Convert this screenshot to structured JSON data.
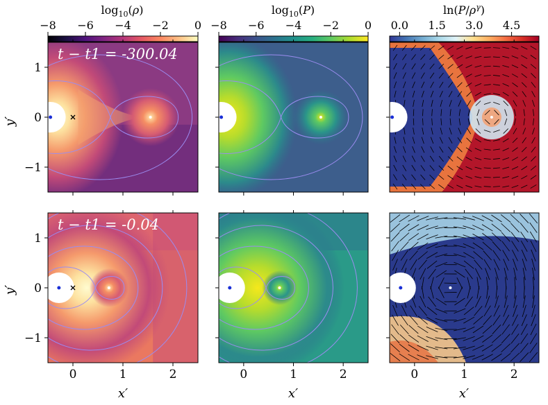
{
  "chart_data": {
    "type": "heatmap",
    "colorbars": [
      {
        "name": "density",
        "title": "log10(ρ)",
        "ticks": [
          "−8",
          "−6",
          "−4",
          "−2",
          "0"
        ],
        "tick_values": [
          -8,
          -6,
          -4,
          -2,
          0
        ],
        "range": [
          -8,
          0
        ],
        "colormap": "magma"
      },
      {
        "name": "pressure",
        "title": "log10(P)",
        "ticks": [
          "−8",
          "−6",
          "−4",
          "−2",
          "0"
        ],
        "tick_values": [
          -8,
          -6,
          -4,
          -2,
          0
        ],
        "range": [
          -8,
          0
        ],
        "colormap": "viridis"
      },
      {
        "name": "entropy",
        "title": "ln(P/ρ^γ)",
        "ticks": [
          "0.0",
          "1.5",
          "3.0",
          "4.5"
        ],
        "tick_values": [
          0.0,
          1.5,
          3.0,
          4.5
        ],
        "range": [
          -0.4,
          5.6
        ],
        "colormap": "RdYlBu_r"
      }
    ],
    "xlabel": "x′",
    "ylabel": "y′",
    "xlim": [
      -0.5,
      2.5
    ],
    "ylim": [
      -1.5,
      1.5
    ],
    "xticks": [
      0,
      1,
      2
    ],
    "yticks": [
      -1,
      0,
      1
    ],
    "xtick_labels": [
      "0",
      "1",
      "2"
    ],
    "ytick_labels": [
      "−1",
      "0",
      "1"
    ],
    "rows": [
      {
        "time_label": "t − t1 = -300.04",
        "star_x": -0.45,
        "companion_x": 1.55,
        "com_x": 0.0
      },
      {
        "time_label": "t − t1 = -0.04",
        "star_x": -0.28,
        "companion_x": 0.72,
        "com_x": 0.0
      }
    ],
    "colors": {
      "marker_star": "#1a2fd6",
      "marker_companion": "#ffffff",
      "marker_com": "#000000",
      "contour": "#9b8cf0"
    }
  }
}
